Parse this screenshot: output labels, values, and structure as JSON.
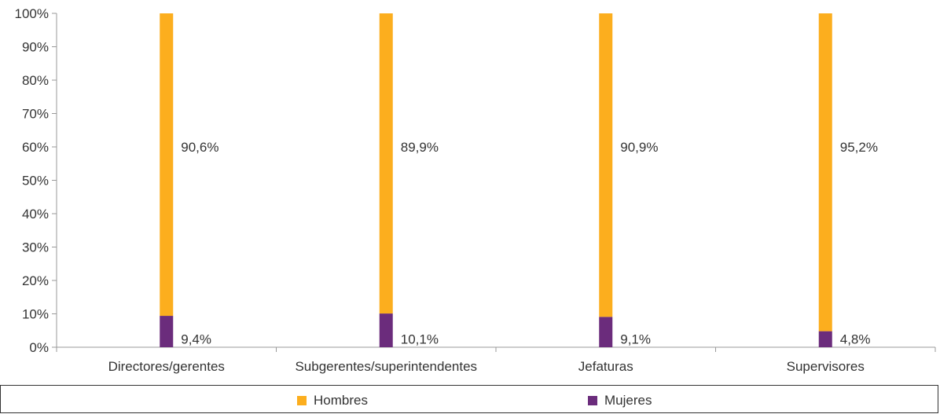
{
  "chart_data": {
    "type": "bar",
    "stacked": true,
    "categories": [
      "Directores/gerentes",
      "Subgerentes/superintendentes",
      "Jefaturas",
      "Supervisores"
    ],
    "series": [
      {
        "name": "Mujeres",
        "color": "#6b2c7c",
        "values": [
          9.4,
          10.1,
          9.1,
          4.8
        ],
        "labels": [
          "9,4%",
          "10,1%",
          "9,1%",
          "4,8%"
        ]
      },
      {
        "name": "Hombres",
        "color": "#fcae1e",
        "values": [
          90.6,
          89.9,
          90.9,
          95.2
        ],
        "labels": [
          "90,6%",
          "89,9%",
          "90,9%",
          "95,2%"
        ]
      }
    ],
    "ylim": [
      0,
      100
    ],
    "yticks": [
      "0%",
      "10%",
      "20%",
      "30%",
      "40%",
      "50%",
      "60%",
      "70%",
      "80%",
      "90%",
      "100%"
    ],
    "grid": false,
    "legend_position": "bottom"
  },
  "legend": {
    "hombres_label": "Hombres",
    "mujeres_label": "Mujeres"
  }
}
